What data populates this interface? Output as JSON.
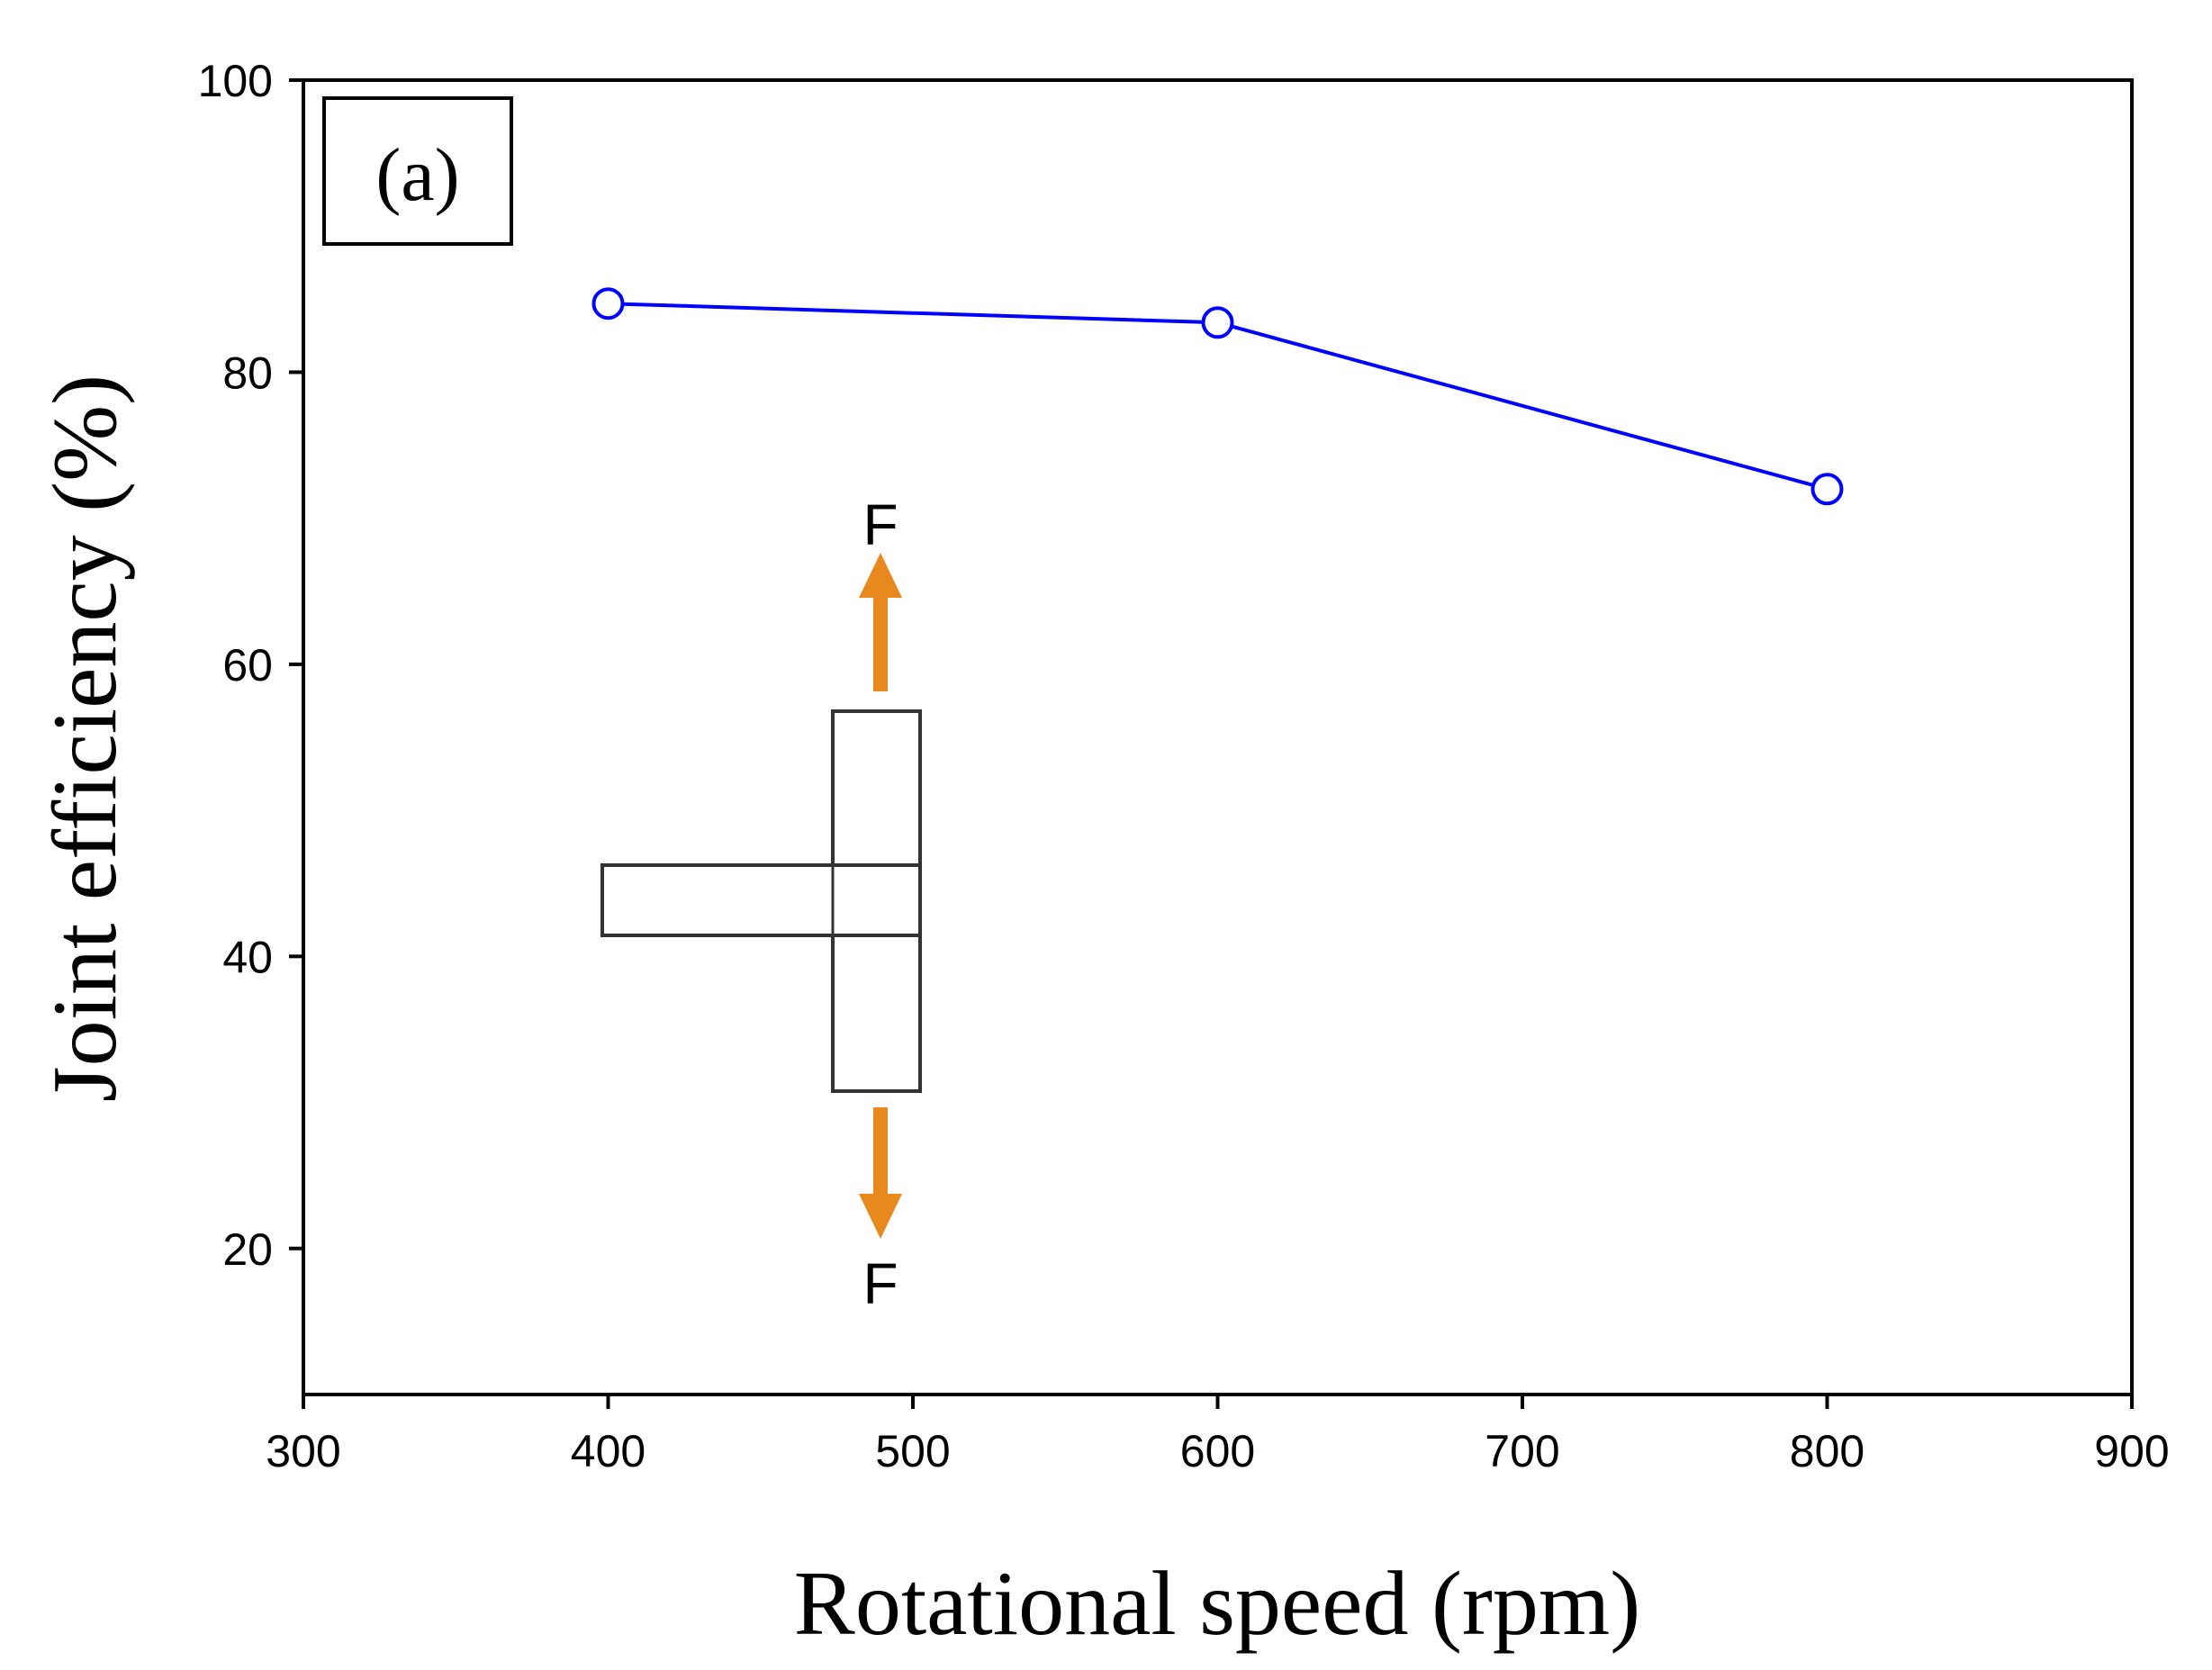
{
  "chart_data": {
    "type": "line",
    "panel_label": "(a)",
    "xlabel": "Rotational speed (rpm)",
    "ylabel": "Joint efficiency (%)",
    "xlim": [
      300,
      900
    ],
    "ylim": [
      10,
      100
    ],
    "xticks": [
      300,
      400,
      500,
      600,
      700,
      800,
      900
    ],
    "yticks": [
      20,
      40,
      60,
      80,
      100
    ],
    "grid": false,
    "series": [
      {
        "name": "Joint efficiency",
        "color": "#0000ff",
        "marker": "open-circle",
        "x": [
          400,
          600,
          800
        ],
        "y": [
          84.7,
          83.4,
          72.0
        ]
      }
    ],
    "inset": {
      "description": "T-joint tensile specimen schematic",
      "force_label_top": "F",
      "force_label_bottom": "F",
      "arrow_color": "#e8891e"
    }
  }
}
